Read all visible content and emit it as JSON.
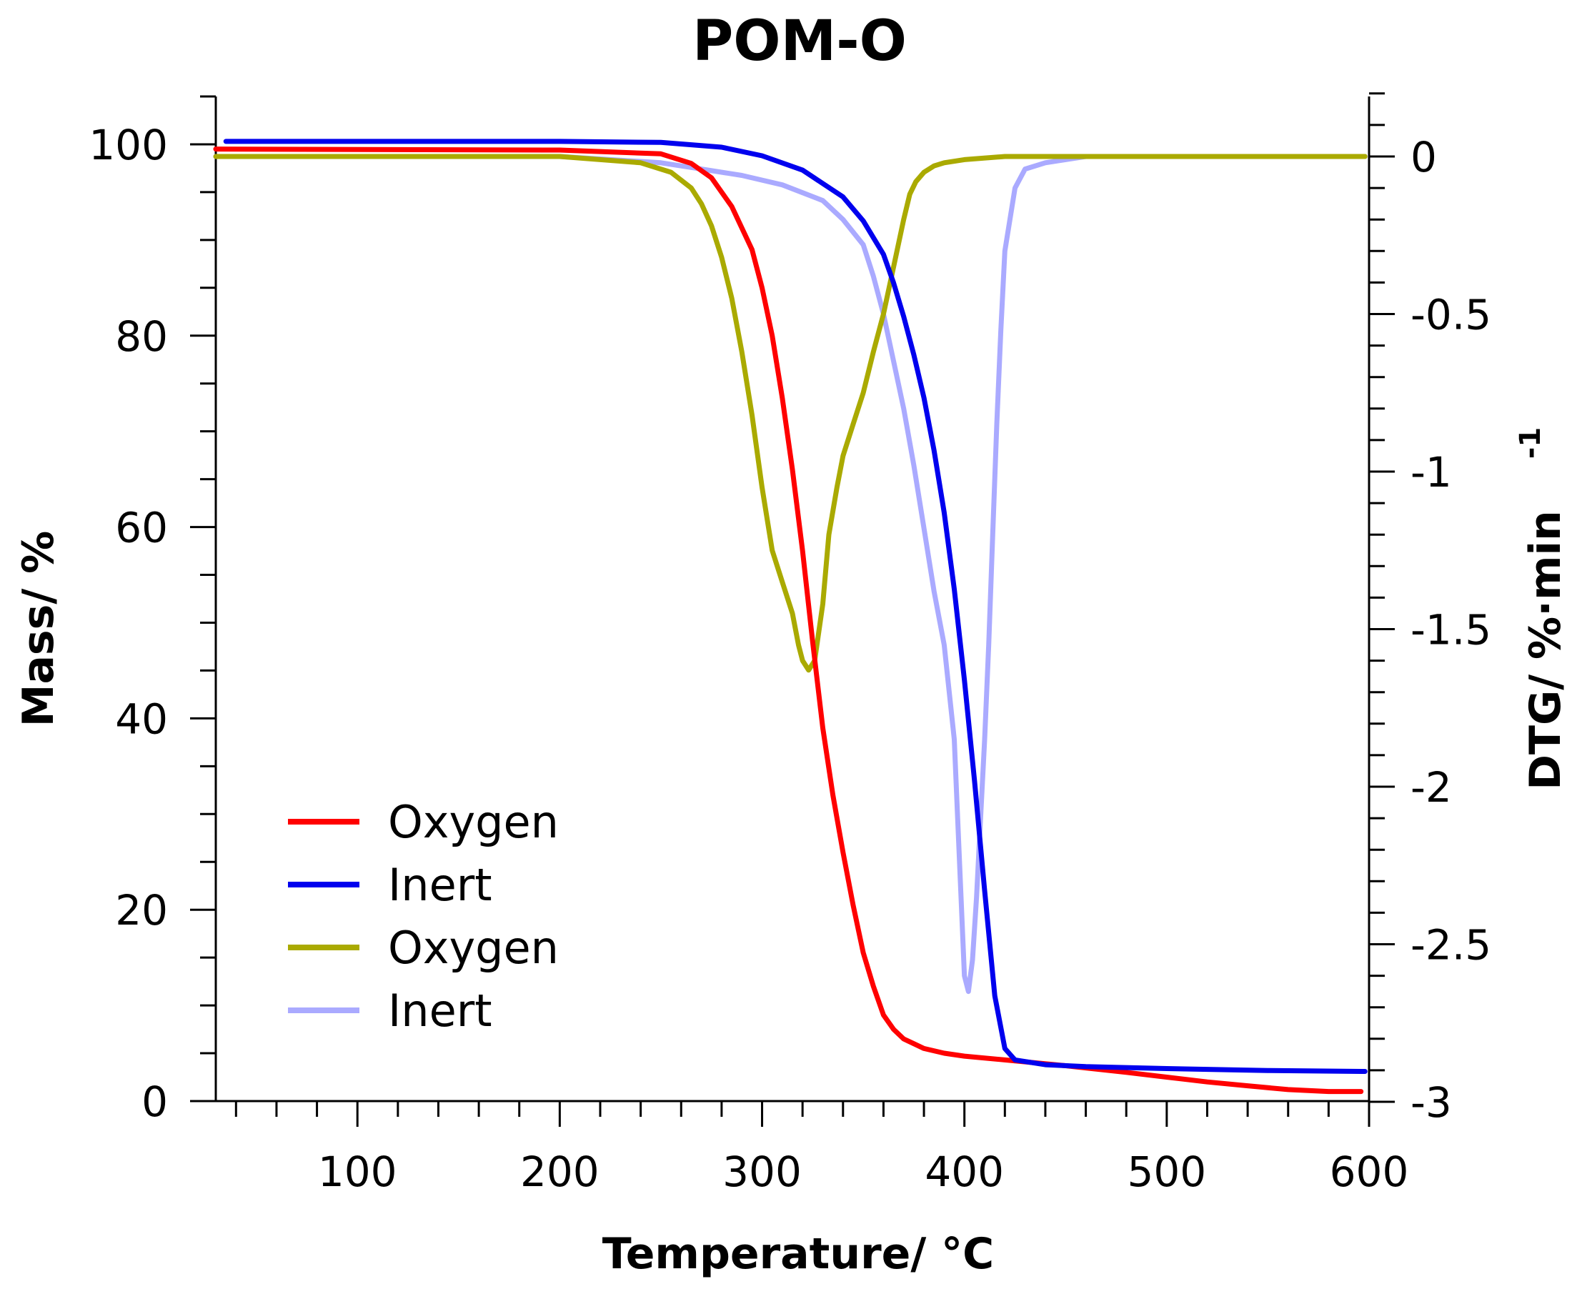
{
  "chart_data": {
    "type": "line",
    "title": "POM-O",
    "xlabel": "Temperature/ °C",
    "ylabel_left": "Mass/ %",
    "ylabel_right_base": "DTG/ %·min",
    "ylabel_right_sup": "-1",
    "xlim": [
      30,
      600
    ],
    "ylim_left": [
      0,
      105
    ],
    "ylim_right": [
      -3,
      0.2
    ],
    "x_ticks": [
      100,
      200,
      300,
      400,
      500,
      600
    ],
    "x_tick_labels": [
      "100",
      "200",
      "300",
      "400",
      "500",
      "600"
    ],
    "y_left_ticks": [
      0,
      20,
      40,
      60,
      80,
      100
    ],
    "y_left_tick_labels": [
      "0",
      "20",
      "40",
      "60",
      "80",
      "100"
    ],
    "y_right_ticks": [
      0,
      -0.5,
      -1,
      -1.5,
      -2,
      -2.5,
      -3
    ],
    "y_right_tick_labels": [
      "0",
      "-0.5",
      "-1",
      "-1.5",
      "-2",
      "-2.5",
      "-3"
    ],
    "legend_position": "bottom-left",
    "series": [
      {
        "name": "Oxygen",
        "axis": "left",
        "color": "#ff0000",
        "x": [
          30,
          200,
          250,
          265,
          275,
          285,
          295,
          300,
          305,
          310,
          315,
          320,
          325,
          330,
          335,
          340,
          345,
          350,
          355,
          360,
          365,
          370,
          375,
          380,
          390,
          400,
          420,
          450,
          480,
          500,
          520,
          540,
          560,
          580,
          596
        ],
        "y": [
          99.5,
          99.4,
          99,
          98,
          96.5,
          93.5,
          89,
          85,
          80,
          73.5,
          66,
          57.5,
          48,
          39,
          32,
          26,
          20.5,
          15.5,
          12,
          9,
          7.5,
          6.5,
          6,
          5.5,
          5,
          4.7,
          4.3,
          3.7,
          3.0,
          2.5,
          2.0,
          1.6,
          1.2,
          1.0,
          1.0
        ]
      },
      {
        "name": "Inert",
        "axis": "left",
        "color": "#0000ee",
        "x": [
          35,
          200,
          250,
          280,
          300,
          320,
          340,
          350,
          360,
          365,
          370,
          375,
          380,
          385,
          390,
          395,
          400,
          405,
          410,
          415,
          420,
          425,
          440,
          460,
          500,
          550,
          598
        ],
        "y": [
          100.3,
          100.3,
          100.2,
          99.7,
          98.8,
          97.3,
          94.5,
          92,
          88.5,
          85.5,
          82,
          78,
          73.5,
          68,
          61.5,
          53.5,
          44,
          33.5,
          22,
          11,
          5.5,
          4.3,
          3.8,
          3.6,
          3.4,
          3.2,
          3.1
        ]
      },
      {
        "name": "Oxygen",
        "axis": "right",
        "color": "#aaaa00",
        "x": [
          30,
          200,
          240,
          255,
          265,
          270,
          275,
          280,
          285,
          290,
          295,
          300,
          305,
          310,
          315,
          318,
          320,
          323,
          326,
          330,
          333,
          337,
          340,
          345,
          350,
          355,
          360,
          365,
          370,
          373,
          376,
          380,
          385,
          390,
          400,
          420,
          440,
          470,
          500,
          550,
          598
        ],
        "y": [
          0.0,
          0.0,
          -0.02,
          -0.05,
          -0.1,
          -0.15,
          -0.22,
          -0.32,
          -0.45,
          -0.62,
          -0.82,
          -1.05,
          -1.25,
          -1.35,
          -1.45,
          -1.55,
          -1.6,
          -1.63,
          -1.6,
          -1.42,
          -1.2,
          -1.05,
          -0.95,
          -0.85,
          -0.75,
          -0.62,
          -0.5,
          -0.35,
          -0.2,
          -0.12,
          -0.08,
          -0.05,
          -0.03,
          -0.02,
          -0.01,
          0.0,
          0.0,
          0.0,
          0.0,
          0.0,
          0.0
        ]
      },
      {
        "name": "Inert",
        "axis": "right",
        "color": "#aaaaff",
        "x": [
          30,
          150,
          200,
          250,
          270,
          290,
          310,
          330,
          340,
          350,
          355,
          360,
          365,
          370,
          375,
          380,
          385,
          390,
          395,
          398,
          400,
          402,
          404,
          406,
          408,
          410,
          412,
          414,
          416,
          418,
          420,
          425,
          430,
          440,
          460,
          500,
          550,
          598
        ],
        "y": [
          0.0,
          0.0,
          0.0,
          -0.02,
          -0.04,
          -0.06,
          -0.09,
          -0.14,
          -0.2,
          -0.28,
          -0.38,
          -0.5,
          -0.65,
          -0.8,
          -0.98,
          -1.18,
          -1.38,
          -1.55,
          -1.85,
          -2.3,
          -2.6,
          -2.65,
          -2.55,
          -2.35,
          -2.1,
          -1.85,
          -1.55,
          -1.2,
          -0.85,
          -0.55,
          -0.3,
          -0.1,
          -0.04,
          -0.02,
          0.0,
          0.0,
          0.0,
          0.0
        ]
      }
    ]
  }
}
